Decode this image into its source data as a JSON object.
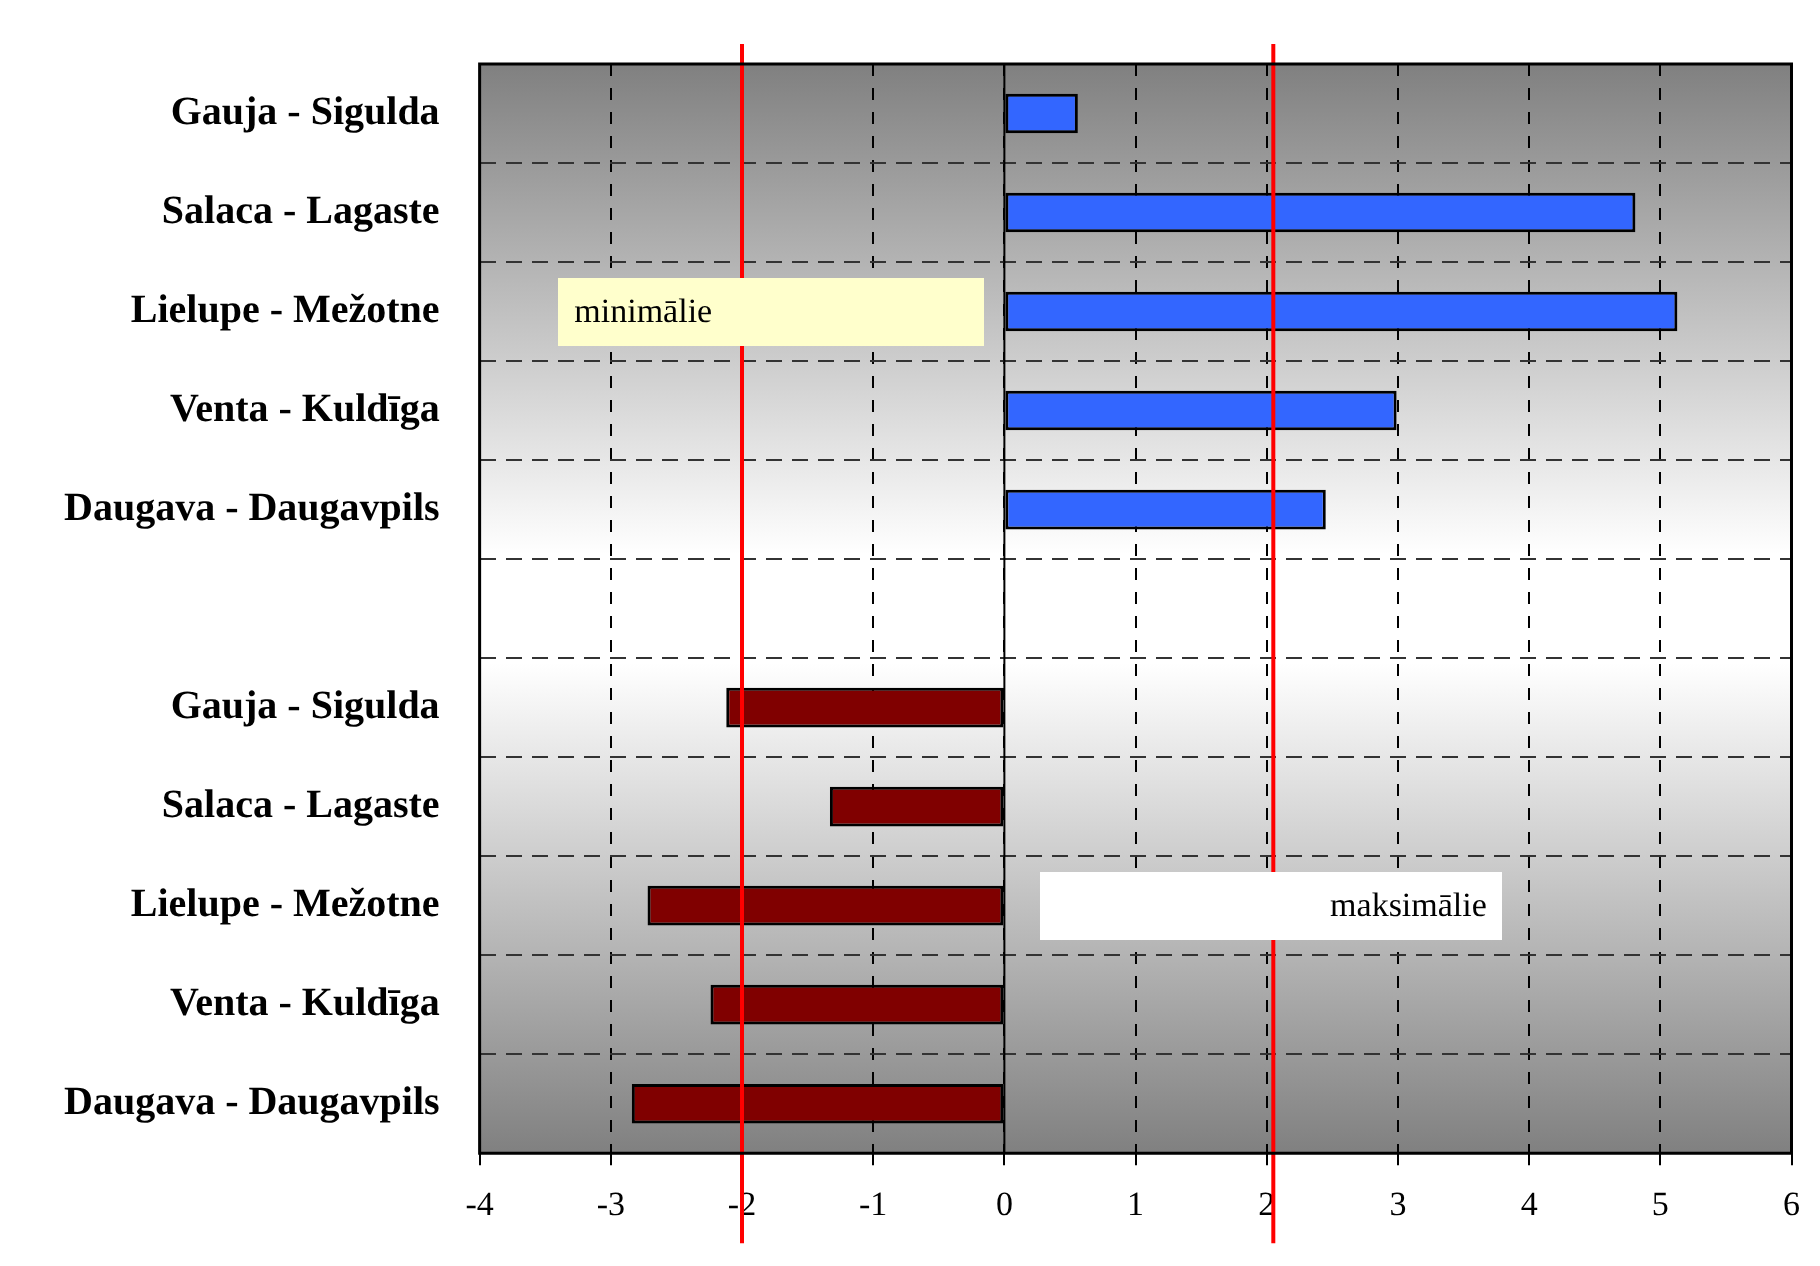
{
  "chart_data": {
    "type": "bar",
    "orientation": "horizontal",
    "categories": [
      "Gauja - Sigulda",
      "Salaca - Lagaste",
      "Lielupe - Mežotne",
      "Venta - Kuldīga",
      "Daugava - Daugavpils",
      null,
      "Gauja - Sigulda",
      "Salaca - Lagaste",
      "Lielupe - Mežotne",
      "Venta - Kuldīga",
      "Daugava - Daugavpils"
    ],
    "series": [
      {
        "color": "#3366ff",
        "values": [
          0.56,
          4.81,
          5.13,
          2.99,
          2.45,
          null,
          null,
          null,
          null,
          null,
          null
        ]
      },
      {
        "color": "#800000",
        "values": [
          null,
          null,
          null,
          null,
          null,
          null,
          -2.12,
          -1.33,
          -2.72,
          -2.24,
          -2.84
        ]
      }
    ],
    "xlim": [
      -4,
      6
    ],
    "xticks": [
      -4,
      -3,
      -2,
      -1,
      0,
      1,
      2,
      3,
      4,
      5,
      6
    ],
    "grid": true,
    "ref_lines": [
      {
        "axis": "x",
        "value": -2,
        "color": "#ff0000"
      },
      {
        "axis": "x",
        "value": 2.05,
        "color": "#ff0000"
      }
    ],
    "annotations": [
      "minimālie",
      "maksimālie"
    ]
  }
}
